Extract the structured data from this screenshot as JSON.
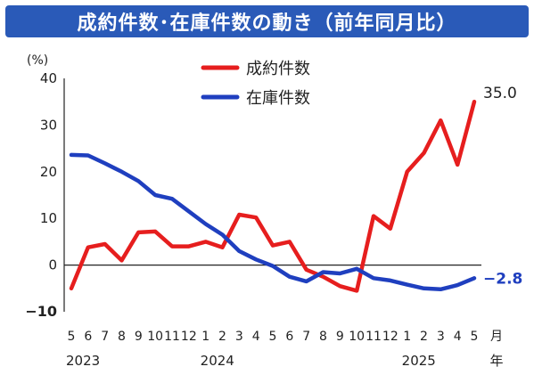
{
  "title": "成約件数･在庫件数の動き（前年同月比）",
  "chart_data": {
    "type": "line",
    "title": "成約件数･在庫件数の動き（前年同月比）",
    "ylabel": "(%)",
    "ylim": [
      -10,
      40
    ],
    "yticks": [
      "40",
      "30",
      "20",
      "10",
      "0",
      "-10"
    ],
    "xlabel": "月年",
    "x_month_labels": [
      "5",
      "6",
      "7",
      "8",
      "9",
      "10",
      "11",
      "12",
      "1",
      "2",
      "3",
      "4",
      "5",
      "6",
      "7",
      "8",
      "9",
      "10",
      "11",
      "12",
      "1",
      "2",
      "3",
      "4",
      "5"
    ],
    "x_year_labels": [
      {
        "label": "2023",
        "index": 0
      },
      {
        "label": "2024",
        "index": 8
      },
      {
        "label": "2025",
        "index": 20
      }
    ],
    "unit_month": "月",
    "unit_year": "年",
    "grid": false,
    "legend_position": "top-center",
    "series": [
      {
        "name": "成約件数",
        "color": "#e61e1e",
        "values": [
          -5.0,
          3.8,
          4.5,
          1.0,
          7.0,
          7.2,
          4.0,
          4.0,
          5.0,
          3.8,
          10.8,
          10.2,
          4.2,
          5.0,
          -1.0,
          -2.5,
          -4.5,
          -5.5,
          10.5,
          7.8,
          20.0,
          24.0,
          31.0,
          21.5,
          35.0
        ],
        "end_label": "35.0"
      },
      {
        "name": "在庫件数",
        "color": "#1f3fbf",
        "values": [
          23.6,
          23.5,
          21.8,
          20.0,
          18.0,
          15.0,
          14.2,
          11.5,
          8.8,
          6.5,
          3.0,
          1.2,
          -0.2,
          -2.5,
          -3.5,
          -1.5,
          -1.8,
          -0.8,
          -2.8,
          -3.3,
          -4.2,
          -5.0,
          -5.2,
          -4.3,
          -2.8
        ],
        "end_label": "-2.8"
      }
    ]
  }
}
